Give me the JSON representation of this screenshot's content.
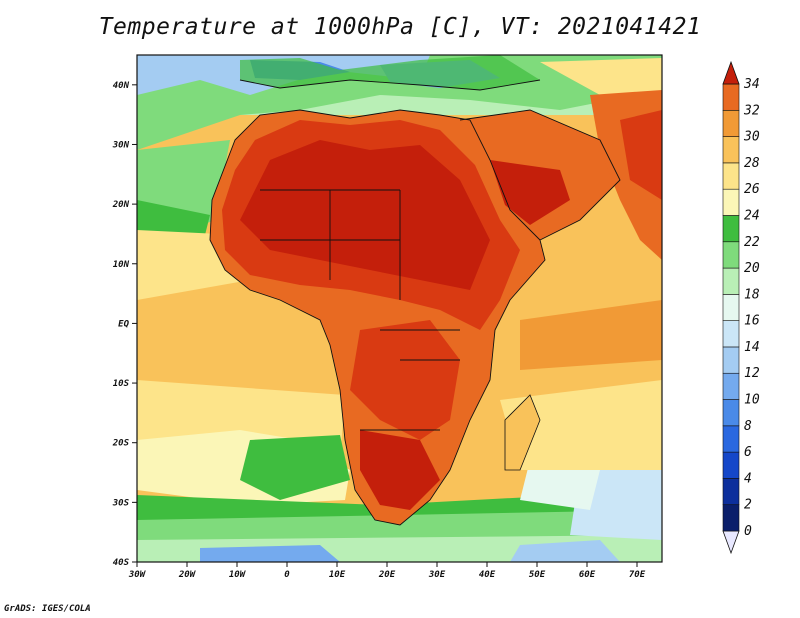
{
  "title": "Temperature at 1000hPa [C], VT: 2021041421",
  "credit": "GrADS: IGES/COLA",
  "map": {
    "variable": "Temperature at 1000hPa",
    "units": "C",
    "valid_time": "2021041421",
    "lon_labels": [
      "30W",
      "20W",
      "10W",
      "0",
      "10E",
      "20E",
      "30E",
      "40E",
      "50E",
      "60E",
      "70E"
    ],
    "lat_labels": [
      "40N",
      "30N",
      "20N",
      "10N",
      "EQ",
      "10S",
      "20S",
      "30S",
      "40S"
    ],
    "lon_range": [
      -30,
      75
    ],
    "lat_range": [
      -40,
      45
    ]
  },
  "colorbar": {
    "labels": [
      "0",
      "2",
      "4",
      "6",
      "8",
      "10",
      "12",
      "14",
      "16",
      "18",
      "20",
      "22",
      "24",
      "26",
      "28",
      "30",
      "32",
      "34"
    ],
    "colors": [
      "#0b1f6b",
      "#0d2f9c",
      "#1547c9",
      "#2a68e0",
      "#4a8ae8",
      "#74aaee",
      "#a4ccf2",
      "#cbe6f7",
      "#e6f8f0",
      "#b9efb6",
      "#7fdb7c",
      "#3fbd3f",
      "#fbf6b7",
      "#fde48a",
      "#f9c25a",
      "#f19a36",
      "#e86a22",
      "#d93a12",
      "#c41f0b"
    ]
  },
  "chart_data": {
    "type": "heatmap",
    "title": "Temperature at 1000hPa [C], VT: 2021041421",
    "x_ticks": [
      "30W",
      "20W",
      "10W",
      "0",
      "10E",
      "20E",
      "30E",
      "40E",
      "50E",
      "60E",
      "70E"
    ],
    "y_ticks": [
      "40N",
      "30N",
      "20N",
      "10N",
      "EQ",
      "10S",
      "20S",
      "30S",
      "40S"
    ],
    "xlim": [
      -30,
      75
    ],
    "ylim": [
      -40,
      45
    ],
    "colorbar_range": [
      0,
      34
    ],
    "colorbar_ticks": [
      0,
      2,
      4,
      6,
      8,
      10,
      12,
      14,
      16,
      18,
      20,
      22,
      24,
      26,
      28,
      30,
      32,
      34
    ]
  }
}
